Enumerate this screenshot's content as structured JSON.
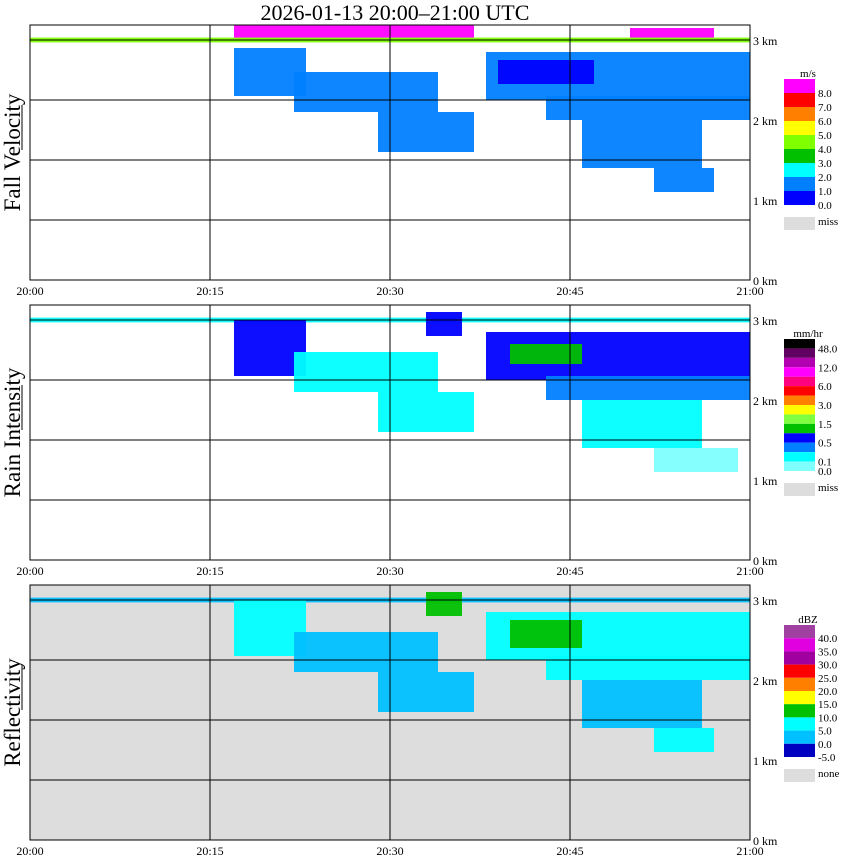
{
  "title": "2026-01-13   20:00–21:00 UTC",
  "chart_data": {
    "type": "heatmap",
    "x_ticks": [
      "20:00",
      "20:15",
      "20:30",
      "20:45",
      "21:00"
    ],
    "x_range_minutes": [
      0,
      60
    ],
    "y_ticks": [
      "0 km",
      "1 km",
      "2 km",
      "3 km"
    ],
    "y_range_km": [
      0,
      3.19
    ],
    "panels": [
      {
        "ylabel": "Fall Velocity",
        "unit": "m/s",
        "background": "#ffffff",
        "legend": [
          {
            "label": "8.0",
            "color": "#ff00ff"
          },
          {
            "label": "7.0",
            "color": "#ff0000"
          },
          {
            "label": "6.0",
            "color": "#ff8000"
          },
          {
            "label": "5.0",
            "color": "#ffff00"
          },
          {
            "label": "4.0",
            "color": "#80ff00"
          },
          {
            "label": "3.0",
            "color": "#00c000"
          },
          {
            "label": "2.0",
            "color": "#00ffff"
          },
          {
            "label": "1.0",
            "color": "#0080ff"
          },
          {
            "label": "0.0",
            "color": "#0000ff"
          }
        ],
        "miss_label": "miss",
        "echoes": [
          [
            0,
            60,
            2.97,
            3.03,
            "#80ff00"
          ],
          [
            38,
            60,
            2.25,
            2.85,
            "#0080ff"
          ],
          [
            39,
            47,
            2.45,
            2.75,
            "#0000ff"
          ],
          [
            43,
            60,
            2.0,
            2.3,
            "#0080ff"
          ],
          [
            46,
            56,
            1.4,
            2.0,
            "#0080ff"
          ],
          [
            52,
            57,
            1.1,
            1.4,
            "#0080ff"
          ],
          [
            17,
            23,
            2.3,
            2.9,
            "#0080ff"
          ],
          [
            22,
            34,
            2.1,
            2.6,
            "#0080ff"
          ],
          [
            29,
            37,
            1.6,
            2.1,
            "#0080ff"
          ],
          [
            17,
            37,
            3.03,
            3.19,
            "#ff00ff"
          ],
          [
            50,
            57,
            3.03,
            3.15,
            "#ff00ff"
          ]
        ]
      },
      {
        "ylabel": "Rain Intensity",
        "unit": "mm/hr",
        "background": "#ffffff",
        "legend": [
          {
            "label": "48.0",
            "color": "#000000"
          },
          {
            "label": "",
            "color": "#600060"
          },
          {
            "label": "12.0",
            "color": "#b000b0"
          },
          {
            "label": "",
            "color": "#ff00ff"
          },
          {
            "label": "6.0",
            "color": "#ff0080"
          },
          {
            "label": "",
            "color": "#ff0000"
          },
          {
            "label": "3.0",
            "color": "#ff8000"
          },
          {
            "label": "",
            "color": "#ffff00"
          },
          {
            "label": "1.5",
            "color": "#80ff40"
          },
          {
            "label": "",
            "color": "#00c000"
          },
          {
            "label": "0.5",
            "color": "#0000ff"
          },
          {
            "label": "",
            "color": "#0080ff"
          },
          {
            "label": "0.1",
            "color": "#00ffff"
          },
          {
            "label": "0.0",
            "color": "#80ffff"
          }
        ],
        "miss_label": "miss",
        "echoes": [
          [
            0,
            60,
            2.97,
            3.03,
            "#00ffff"
          ],
          [
            38,
            60,
            2.25,
            2.85,
            "#0000ff"
          ],
          [
            40,
            46,
            2.45,
            2.7,
            "#00c000"
          ],
          [
            43,
            60,
            2.0,
            2.3,
            "#0080ff"
          ],
          [
            46,
            56,
            1.4,
            2.0,
            "#00ffff"
          ],
          [
            52,
            59,
            1.1,
            1.4,
            "#80ffff"
          ],
          [
            17,
            23,
            2.3,
            3.0,
            "#0000ff"
          ],
          [
            22,
            34,
            2.1,
            2.6,
            "#00ffff"
          ],
          [
            29,
            37,
            1.6,
            2.1,
            "#00ffff"
          ],
          [
            33,
            36,
            2.8,
            3.1,
            "#0000ff"
          ]
        ]
      },
      {
        "ylabel": "Reflectivity",
        "unit": "dBZ",
        "background": "#dddddd",
        "legend": [
          {
            "label": "40.0",
            "color": "#a040a0"
          },
          {
            "label": "35.0",
            "color": "#e000e0"
          },
          {
            "label": "30.0",
            "color": "#a000a0"
          },
          {
            "label": "25.0",
            "color": "#ff0000"
          },
          {
            "label": "20.0",
            "color": "#ff8000"
          },
          {
            "label": "15.0",
            "color": "#ffff00"
          },
          {
            "label": "10.0",
            "color": "#00c000"
          },
          {
            "label": "5.0",
            "color": "#00ffff"
          },
          {
            "label": "0.0",
            "color": "#00c0ff"
          },
          {
            "label": "-5.0",
            "color": "#0000c0"
          }
        ],
        "miss_label": "none",
        "echoes": [
          [
            0,
            60,
            2.97,
            3.03,
            "#00c0ff"
          ],
          [
            38,
            60,
            2.25,
            2.85,
            "#00ffff"
          ],
          [
            40,
            46,
            2.4,
            2.75,
            "#00c000"
          ],
          [
            43,
            60,
            2.0,
            2.3,
            "#00ffff"
          ],
          [
            46,
            56,
            1.4,
            2.0,
            "#00c0ff"
          ],
          [
            52,
            57,
            1.1,
            1.4,
            "#00ffff"
          ],
          [
            17,
            23,
            2.3,
            3.0,
            "#00ffff"
          ],
          [
            22,
            34,
            2.1,
            2.6,
            "#00c0ff"
          ],
          [
            29,
            37,
            1.6,
            2.1,
            "#00c0ff"
          ],
          [
            33,
            36,
            2.8,
            3.1,
            "#00c000"
          ]
        ]
      }
    ]
  }
}
